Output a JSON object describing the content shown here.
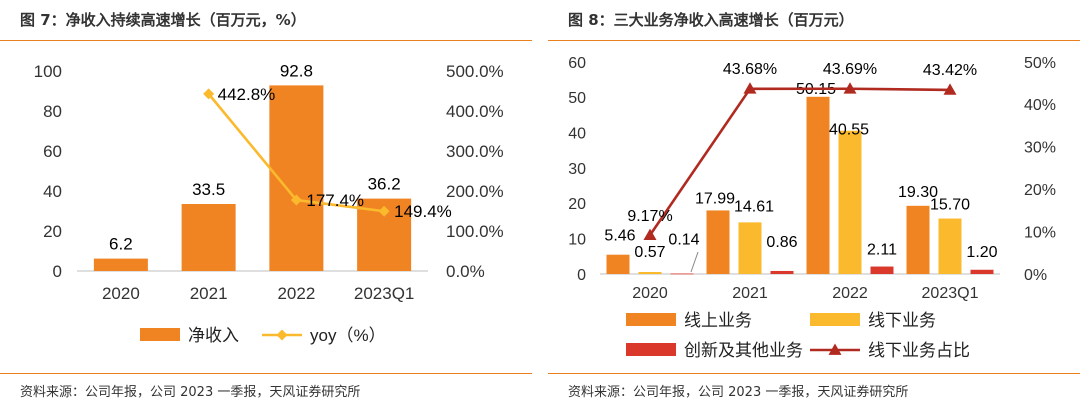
{
  "figures": [
    {
      "title": "图 7：净收入持续高速增长（百万元，%）",
      "source": "资料来源：公司年报，公司 2023 一季报，天风证券研究所"
    },
    {
      "title": "图 8：三大业务净收入高速增长（百万元）",
      "source": "资料来源：公司年报，公司 2023 一季报，天风证券研究所"
    }
  ],
  "colors": {
    "accent": "#e8801f",
    "orange": "#f08322",
    "yellow": "#fbb92d",
    "red": "#d9382a",
    "darkred": "#b02a20"
  },
  "chart_data": [
    {
      "type": "bar",
      "categories": [
        "2020",
        "2021",
        "2022",
        "2023Q1"
      ],
      "series": [
        {
          "name": "净收入",
          "type": "bar",
          "axis": "left",
          "color": "#f08322",
          "values": [
            6.2,
            33.5,
            92.8,
            36.2
          ],
          "labels": [
            "6.2",
            "33.5",
            "92.8",
            "36.2"
          ]
        },
        {
          "name": "yoy（%）",
          "type": "line",
          "axis": "right",
          "color": "#fbb92d",
          "values": [
            null,
            442.8,
            177.4,
            149.4
          ],
          "labels": [
            "",
            "442.8%",
            "177.4%",
            "149.4%"
          ]
        }
      ],
      "y_left": {
        "range": [
          0,
          100
        ],
        "ticks": [
          "0",
          "20",
          "40",
          "60",
          "80",
          "100"
        ]
      },
      "y_right": {
        "range": [
          0,
          500
        ],
        "ticks": [
          "0.0%",
          "100.0%",
          "200.0%",
          "300.0%",
          "400.0%",
          "500.0%"
        ]
      },
      "grid": false,
      "legend": "bottom"
    },
    {
      "type": "bar",
      "categories": [
        "2020",
        "2021",
        "2022",
        "2023Q1"
      ],
      "series": [
        {
          "name": "线上业务",
          "type": "bar",
          "axis": "left",
          "color": "#f08322",
          "values": [
            5.46,
            17.99,
            50.15,
            19.3
          ],
          "labels": [
            "5.46",
            "17.99",
            "50.15",
            "19.30"
          ]
        },
        {
          "name": "线下业务",
          "type": "bar",
          "axis": "left",
          "color": "#fbb92d",
          "values": [
            0.57,
            14.61,
            40.55,
            15.7
          ],
          "labels": [
            "0.57",
            "14.61",
            "40.55",
            "15.70"
          ]
        },
        {
          "name": "创新及其他业务",
          "type": "bar",
          "axis": "left",
          "color": "#d9382a",
          "values": [
            0.14,
            0.86,
            2.11,
            1.2
          ],
          "labels": [
            "0.14",
            "0.86",
            "2.11",
            "1.20"
          ]
        },
        {
          "name": "线下业务占比",
          "type": "line",
          "axis": "right",
          "color": "#b02a20",
          "values": [
            9.17,
            43.68,
            43.69,
            43.42
          ],
          "labels": [
            "9.17%",
            "43.68%",
            "43.69%",
            "43.42%"
          ]
        }
      ],
      "y_left": {
        "range": [
          0,
          60
        ],
        "ticks": [
          "0",
          "10",
          "20",
          "30",
          "40",
          "50",
          "60"
        ]
      },
      "y_right": {
        "range": [
          0,
          50
        ],
        "ticks": [
          "0%",
          "10%",
          "20%",
          "30%",
          "40%",
          "50%"
        ]
      },
      "grid": false,
      "legend": "bottom"
    }
  ]
}
